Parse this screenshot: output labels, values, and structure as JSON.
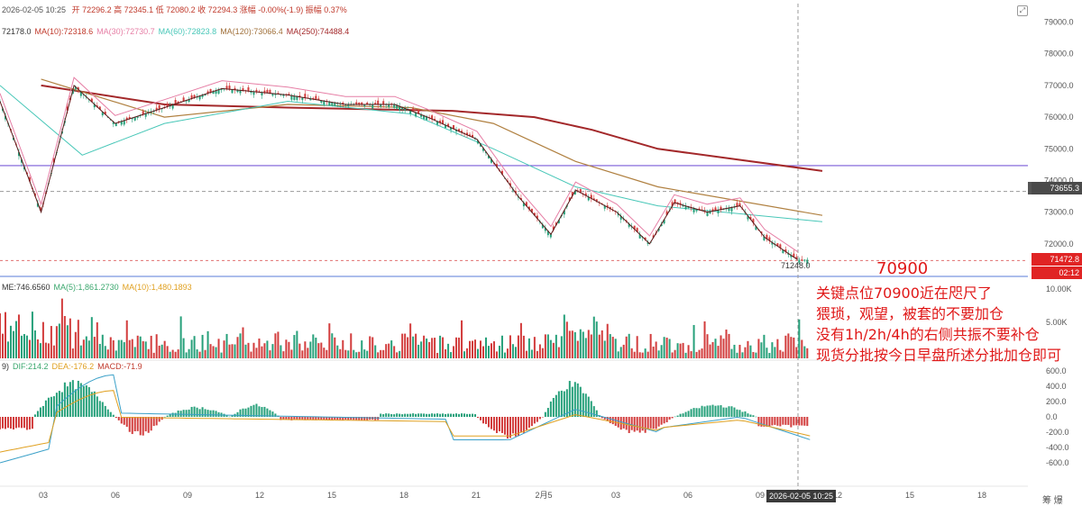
{
  "header": {
    "datetime": "2026-02-05 10:25",
    "ohlc": "开 72296.2  高 72345.1  低 72080.2  收 72294.3  涨幅 -0.00%(-1.9)  振幅 0.37%"
  },
  "ma_legend": [
    {
      "text": "72178.0",
      "color": "#333333"
    },
    {
      "text": "MA(10):72318.6",
      "color": "#c0392b"
    },
    {
      "text": "MA(30):72730.7",
      "color": "#e67ea5"
    },
    {
      "text": "MA(60):72823.8",
      "color": "#48c7b8"
    },
    {
      "text": "MA(120):73066.4",
      "color": "#a0703a"
    },
    {
      "text": "MA(250):74488.4",
      "color": "#a3282a"
    }
  ],
  "vol_legend": [
    {
      "text": "ME:746.6560",
      "color": "#333333"
    },
    {
      "text": "MA(5):1,861.2730",
      "color": "#3aa76d"
    },
    {
      "text": "MA(10):1,480.1893",
      "color": "#e0a020"
    }
  ],
  "macd_legend": [
    {
      "text": "9)",
      "color": "#333333"
    },
    {
      "text": "DIF:214.2",
      "color": "#3aa76d"
    },
    {
      "text": "DEA:-176.2",
      "color": "#e0a020"
    },
    {
      "text": "MACD:-71.9",
      "color": "#c0392b"
    }
  ],
  "price_axis": [
    "79000.0",
    "78000.0",
    "77000.0",
    "76000.0",
    "75000.0",
    "74000.0",
    "73000.0",
    "72000.0"
  ],
  "price_labels": {
    "crosshair": "73655.3",
    "last": "71472.8",
    "countdown": "02:12",
    "low_marker": "71248.0"
  },
  "vol_axis": [
    "10.00K",
    "5.00K"
  ],
  "macd_axis": [
    "600.0",
    "400.0",
    "200.0",
    "0.0",
    "-200.0",
    "-400.0",
    "-600.0"
  ],
  "x_axis": [
    "03",
    "06",
    "09",
    "12",
    "15",
    "18",
    "21",
    "2月5",
    "03",
    "06",
    "09",
    "12",
    "15",
    "18"
  ],
  "x_crosshair_label": "2026-02-05 10:25",
  "bottom_right": "筹 爆",
  "annotation": {
    "headline": "70900",
    "lines": [
      "关键点位70900近在咫尺了",
      "猥琐，观望，被套的不要加仓",
      "没有1h/2h/4h的右侧共振不要补仓",
      "现货分批按今日早盘所述分批加仓即可"
    ]
  },
  "chart_data": {
    "type": "candlestick",
    "price_range": [
      71000,
      79300
    ],
    "horizontal_levels": [
      74470,
      73655.3,
      71472.8
    ],
    "ma250_path": [
      [
        0.05,
        77000
      ],
      [
        0.2,
        76400
      ],
      [
        0.35,
        76300
      ],
      [
        0.55,
        76200
      ],
      [
        0.65,
        76000
      ],
      [
        0.72,
        75600
      ],
      [
        0.8,
        75000
      ],
      [
        1.0,
        74300
      ]
    ],
    "ma120_path": [
      [
        0.05,
        77200
      ],
      [
        0.2,
        76000
      ],
      [
        0.35,
        76400
      ],
      [
        0.5,
        76300
      ],
      [
        0.6,
        75800
      ],
      [
        0.7,
        74600
      ],
      [
        0.8,
        73800
      ],
      [
        1.0,
        72900
      ]
    ],
    "ma60_path": [
      [
        0.0,
        77000
      ],
      [
        0.1,
        74800
      ],
      [
        0.2,
        75800
      ],
      [
        0.35,
        76500
      ],
      [
        0.5,
        76100
      ],
      [
        0.6,
        75000
      ],
      [
        0.7,
        73800
      ],
      [
        0.8,
        73200
      ],
      [
        1.0,
        72700
      ]
    ],
    "close_path": [
      [
        0.0,
        76500
      ],
      [
        0.05,
        73000
      ],
      [
        0.09,
        77000
      ],
      [
        0.14,
        75800
      ],
      [
        0.2,
        76300
      ],
      [
        0.27,
        76900
      ],
      [
        0.35,
        76700
      ],
      [
        0.42,
        76400
      ],
      [
        0.48,
        76400
      ],
      [
        0.52,
        76000
      ],
      [
        0.58,
        75300
      ],
      [
        0.63,
        73500
      ],
      [
        0.67,
        72300
      ],
      [
        0.7,
        73700
      ],
      [
        0.75,
        73000
      ],
      [
        0.79,
        72000
      ],
      [
        0.82,
        73300
      ],
      [
        0.86,
        73000
      ],
      [
        0.9,
        73200
      ],
      [
        0.93,
        72200
      ],
      [
        0.97,
        71500
      ]
    ],
    "macd_hist_shape": "positive early and around 2月5 03, negative elsewhere"
  }
}
